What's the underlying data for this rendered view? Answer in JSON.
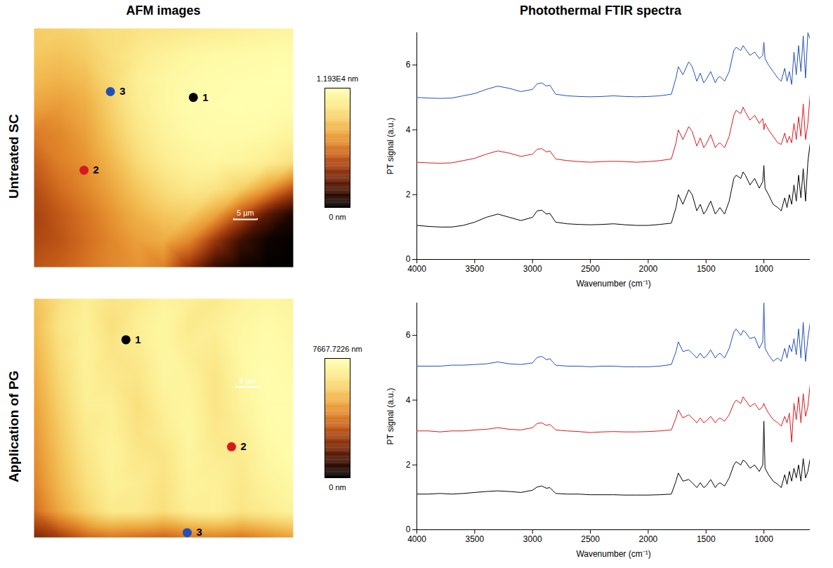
{
  "figure": {
    "column_titles": [
      "AFM images",
      "Photothermal FTIR spectra"
    ],
    "row_labels": [
      "Untreated SC",
      "Application of PG"
    ]
  },
  "chart_data": [
    {
      "type": "heatmap",
      "tick_labels": false,
      "xlim": [
        0,
        55
      ],
      "ylim": [
        49.5,
        0
      ],
      "cells": [
        [
          8800,
          9000,
          9300,
          9600,
          9800,
          10000,
          10200,
          10400,
          10600,
          10800,
          11000
        ],
        [
          8600,
          8400,
          8800,
          9600,
          10300,
          10800,
          11200,
          11400,
          11500,
          11600,
          11700
        ],
        [
          8000,
          7800,
          8200,
          9400,
          10600,
          11200,
          11500,
          11700,
          11800,
          11900,
          11900
        ],
        [
          7200,
          7000,
          7600,
          9000,
          10400,
          11200,
          11600,
          11800,
          11900,
          11800,
          11700
        ],
        [
          6000,
          6400,
          7200,
          8600,
          10000,
          10900,
          11400,
          11600,
          11600,
          11400,
          11000
        ],
        [
          5200,
          6200,
          6800,
          8000,
          9400,
          10400,
          11000,
          11200,
          11000,
          10600,
          9800
        ],
        [
          4600,
          5600,
          6400,
          7400,
          8600,
          9600,
          10200,
          10000,
          9000,
          7200,
          5000
        ],
        [
          4200,
          5000,
          5800,
          6800,
          7800,
          8600,
          8800,
          7400,
          4800,
          2400,
          800
        ],
        [
          4400,
          4800,
          5600,
          6400,
          7200,
          7600,
          6400,
          3800,
          1600,
          400,
          100
        ],
        [
          4800,
          5200,
          5800,
          6400,
          6800,
          6200,
          3600,
          1400,
          400,
          100,
          0
        ]
      ],
      "colorbar": {
        "range": [
          0,
          11930
        ],
        "ticks": [
          {
            "value": 11930,
            "label": "1.193E4 nm"
          },
          {
            "value": 0,
            "label": "0 nm"
          }
        ]
      },
      "scale_bar": {
        "length": 5,
        "label": "5 µm"
      },
      "points": [
        {
          "label": "1",
          "x": 33.8,
          "y": 14.3
        },
        {
          "label": "2",
          "x": 10.6,
          "y": 29.4
        },
        {
          "label": "3",
          "x": 16.2,
          "y": 13.1
        }
      ]
    },
    {
      "type": "line",
      "x_label": "Wavenumber (cm⁻¹)",
      "y_label": "PT signal (a.u.)",
      "xlim": [
        4000,
        600
      ],
      "ylim": [
        0,
        7
      ],
      "xticks": [
        4000,
        3500,
        3000,
        2500,
        2000,
        1500,
        1000
      ],
      "yticks": [
        0,
        2,
        4,
        6
      ],
      "x": [
        4000,
        3900,
        3800,
        3700,
        3600,
        3500,
        3400,
        3300,
        3200,
        3100,
        3000,
        2960,
        2920,
        2880,
        2850,
        2800,
        2700,
        2600,
        2500,
        2400,
        2300,
        2200,
        2100,
        2000,
        1900,
        1800,
        1760,
        1740,
        1700,
        1650,
        1620,
        1580,
        1550,
        1520,
        1500,
        1460,
        1420,
        1400,
        1380,
        1340,
        1300,
        1260,
        1240,
        1200,
        1180,
        1160,
        1120,
        1080,
        1040,
        1010,
        1000,
        990,
        960,
        920,
        880,
        850,
        820,
        800,
        780,
        760,
        740,
        720,
        700,
        680,
        660,
        640,
        620,
        600
      ],
      "series": [
        {
          "name": "1",
          "color": "#000000",
          "values": [
            1.05,
            1.02,
            1.0,
            1.0,
            1.05,
            1.15,
            1.3,
            1.4,
            1.3,
            1.2,
            1.3,
            1.5,
            1.52,
            1.4,
            1.42,
            1.15,
            1.1,
            1.08,
            1.07,
            1.08,
            1.1,
            1.07,
            1.05,
            1.05,
            1.08,
            1.12,
            1.6,
            2.0,
            1.7,
            2.15,
            2.0,
            1.5,
            1.7,
            1.4,
            1.5,
            1.8,
            1.4,
            1.5,
            1.6,
            1.4,
            1.8,
            2.5,
            2.6,
            2.5,
            2.7,
            2.6,
            2.3,
            2.5,
            2.2,
            2.4,
            2.9,
            2.2,
            2.0,
            1.7,
            1.6,
            1.5,
            1.9,
            1.6,
            2.0,
            1.7,
            2.3,
            1.8,
            2.6,
            1.9,
            2.8,
            1.8,
            3.0,
            3.6
          ]
        },
        {
          "name": "2",
          "color": "#d7191f",
          "values": [
            3.0,
            2.98,
            2.97,
            2.98,
            3.05,
            3.12,
            3.25,
            3.35,
            3.28,
            3.18,
            3.25,
            3.4,
            3.42,
            3.32,
            3.35,
            3.1,
            3.05,
            3.02,
            3.0,
            3.02,
            3.03,
            3.02,
            3.0,
            3.02,
            3.05,
            3.1,
            3.6,
            4.0,
            3.7,
            4.1,
            3.95,
            3.5,
            3.75,
            3.45,
            3.55,
            3.85,
            3.45,
            3.55,
            3.6,
            3.45,
            3.8,
            4.45,
            4.6,
            4.5,
            4.7,
            4.55,
            4.3,
            4.45,
            4.2,
            4.35,
            4.0,
            4.2,
            4.0,
            3.8,
            3.6,
            3.55,
            3.9,
            3.6,
            3.8,
            3.6,
            4.2,
            3.7,
            4.4,
            3.8,
            4.8,
            3.7,
            4.2,
            5.1
          ]
        },
        {
          "name": "3",
          "color": "#2250b8",
          "values": [
            5.0,
            4.98,
            4.97,
            4.98,
            5.05,
            5.12,
            5.25,
            5.35,
            5.28,
            5.18,
            5.25,
            5.42,
            5.45,
            5.35,
            5.38,
            5.1,
            5.05,
            5.03,
            5.02,
            5.03,
            5.05,
            5.03,
            5.02,
            5.03,
            5.05,
            5.1,
            5.6,
            5.95,
            5.7,
            6.1,
            5.95,
            5.5,
            5.75,
            5.45,
            5.55,
            5.8,
            5.45,
            5.6,
            5.65,
            5.5,
            5.8,
            6.45,
            6.55,
            6.45,
            6.6,
            6.5,
            6.3,
            6.4,
            6.2,
            6.3,
            6.7,
            6.2,
            6.0,
            5.8,
            5.6,
            5.5,
            5.9,
            5.5,
            5.8,
            5.4,
            6.4,
            5.7,
            6.6,
            5.8,
            6.9,
            5.6,
            7.0,
            6.8
          ]
        }
      ]
    },
    {
      "type": "heatmap",
      "tick_labels": false,
      "xlim": [
        0,
        55
      ],
      "ylim": [
        49.5,
        0
      ],
      "cells": [
        [
          5400,
          6200,
          6800,
          6400,
          6600,
          7000,
          6800,
          6600,
          7000,
          7200,
          7000
        ],
        [
          5200,
          6400,
          6900,
          6200,
          6800,
          7200,
          6600,
          6800,
          7200,
          7400,
          7200
        ],
        [
          5000,
          6200,
          7000,
          6400,
          6600,
          7200,
          6800,
          6600,
          7300,
          7500,
          7300
        ],
        [
          4800,
          6000,
          6900,
          6600,
          6400,
          7100,
          7000,
          6400,
          7200,
          7600,
          7400
        ],
        [
          4600,
          5800,
          6800,
          6800,
          6200,
          6900,
          7100,
          6400,
          7000,
          7500,
          7500
        ],
        [
          4400,
          5600,
          6600,
          6900,
          6300,
          6700,
          7200,
          6500,
          6800,
          7400,
          7600
        ],
        [
          4200,
          5400,
          6400,
          7000,
          6500,
          6400,
          7100,
          6700,
          6600,
          7200,
          7500
        ],
        [
          4000,
          5200,
          6200,
          6900,
          6700,
          6300,
          7000,
          6900,
          6500,
          7000,
          7300
        ],
        [
          3600,
          4800,
          5800,
          6600,
          6600,
          6200,
          6800,
          6900,
          6400,
          6700,
          7000
        ],
        [
          2000,
          2600,
          3400,
          3800,
          3600,
          3400,
          3800,
          4000,
          3800,
          4200,
          4600
        ]
      ],
      "colorbar": {
        "range": [
          0,
          7667.7226
        ],
        "ticks": [
          {
            "value": 7667.7226,
            "label": "7667.7226 nm"
          },
          {
            "value": 0,
            "label": "0 nm"
          }
        ]
      },
      "scale_bar": {
        "length": 5,
        "label": "5 µm"
      },
      "points": [
        {
          "label": "1",
          "x": 19.5,
          "y": 8.5
        },
        {
          "label": "2",
          "x": 41.9,
          "y": 30.7
        },
        {
          "label": "3",
          "x": 32.5,
          "y": 48.5
        }
      ]
    },
    {
      "type": "line",
      "x_label": "Wavenumber (cm⁻¹)",
      "y_label": "PT signal (a.u.)",
      "xlim": [
        4000,
        600
      ],
      "ylim": [
        0,
        7
      ],
      "xticks": [
        4000,
        3500,
        3000,
        2500,
        2000,
        1500,
        1000
      ],
      "yticks": [
        0,
        2,
        4,
        6
      ],
      "x": [
        4000,
        3900,
        3800,
        3700,
        3600,
        3500,
        3400,
        3300,
        3200,
        3100,
        3000,
        2960,
        2920,
        2880,
        2850,
        2800,
        2700,
        2600,
        2500,
        2400,
        2300,
        2200,
        2100,
        2000,
        1900,
        1800,
        1760,
        1740,
        1700,
        1650,
        1620,
        1580,
        1550,
        1520,
        1500,
        1460,
        1420,
        1400,
        1380,
        1340,
        1300,
        1260,
        1240,
        1200,
        1180,
        1160,
        1120,
        1080,
        1040,
        1010,
        1000,
        990,
        960,
        920,
        880,
        850,
        820,
        800,
        780,
        760,
        740,
        720,
        700,
        680,
        660,
        640,
        620,
        600
      ],
      "series": [
        {
          "name": "1",
          "color": "#000000",
          "values": [
            1.1,
            1.1,
            1.12,
            1.1,
            1.12,
            1.15,
            1.18,
            1.2,
            1.18,
            1.15,
            1.22,
            1.32,
            1.35,
            1.28,
            1.3,
            1.12,
            1.1,
            1.1,
            1.08,
            1.08,
            1.08,
            1.07,
            1.07,
            1.07,
            1.08,
            1.1,
            1.5,
            1.75,
            1.5,
            1.55,
            1.45,
            1.3,
            1.45,
            1.3,
            1.35,
            1.55,
            1.3,
            1.4,
            1.45,
            1.35,
            1.6,
            2.0,
            2.1,
            2.0,
            2.15,
            2.1,
            1.9,
            2.0,
            1.8,
            2.0,
            3.35,
            1.9,
            1.7,
            1.5,
            1.4,
            1.3,
            1.7,
            1.4,
            1.8,
            1.5,
            1.9,
            1.6,
            2.0,
            1.5,
            2.2,
            1.6,
            1.8,
            2.2
          ]
        },
        {
          "name": "2",
          "color": "#d7191f",
          "values": [
            3.05,
            3.05,
            3.02,
            3.05,
            3.05,
            3.08,
            3.1,
            3.15,
            3.1,
            3.08,
            3.15,
            3.28,
            3.3,
            3.22,
            3.25,
            3.08,
            3.05,
            3.03,
            3.0,
            3.02,
            3.03,
            3.02,
            3.02,
            3.03,
            3.05,
            3.08,
            3.45,
            3.7,
            3.45,
            3.55,
            3.45,
            3.3,
            3.45,
            3.3,
            3.35,
            3.5,
            3.3,
            3.4,
            3.45,
            3.35,
            3.55,
            3.9,
            4.0,
            3.9,
            4.1,
            4.0,
            3.8,
            3.9,
            3.7,
            3.8,
            3.9,
            3.8,
            3.6,
            3.4,
            3.3,
            3.2,
            3.5,
            3.3,
            3.6,
            2.7,
            3.9,
            3.4,
            4.1,
            3.3,
            4.2,
            3.5,
            3.8,
            4.5
          ]
        },
        {
          "name": "3",
          "color": "#2250b8",
          "values": [
            5.05,
            5.05,
            5.05,
            5.08,
            5.08,
            5.1,
            5.12,
            5.18,
            5.12,
            5.1,
            5.15,
            5.32,
            5.35,
            5.25,
            5.28,
            5.08,
            5.05,
            5.05,
            5.03,
            5.05,
            5.05,
            5.03,
            5.03,
            5.03,
            5.05,
            5.1,
            5.5,
            5.8,
            5.5,
            5.55,
            5.45,
            5.3,
            5.45,
            5.3,
            5.35,
            5.55,
            5.3,
            5.4,
            5.45,
            5.3,
            5.6,
            6.1,
            6.2,
            6.0,
            6.15,
            6.1,
            5.9,
            5.95,
            5.6,
            5.8,
            7.0,
            5.6,
            5.4,
            5.2,
            5.3,
            5.2,
            5.6,
            5.3,
            5.7,
            5.5,
            5.9,
            5.4,
            6.2,
            5.3,
            6.4,
            5.2,
            5.9,
            6.4
          ]
        }
      ]
    }
  ]
}
